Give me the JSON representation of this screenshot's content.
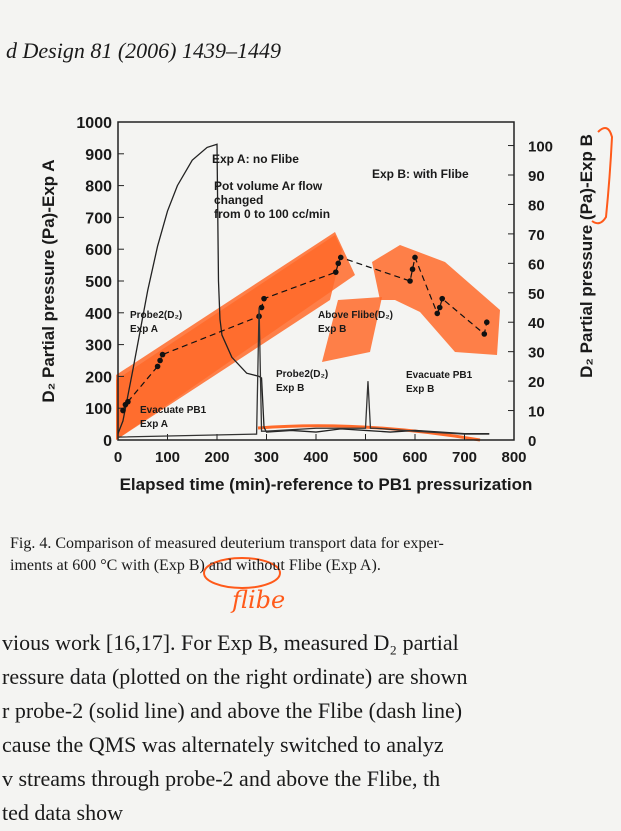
{
  "header": "d Design 81 (2006) 1439–1449",
  "chart_data": {
    "type": "line",
    "xlabel": "Elapsed time (min)-reference to PB1 pressurization",
    "ylabel": "D₂ Partial pressure (Pa)-Exp A",
    "y2label": "D₂ Partial pressure (Pa)-Exp B",
    "xlim": [
      0,
      800
    ],
    "xticks": [
      0,
      100,
      200,
      300,
      400,
      500,
      600,
      700,
      800
    ],
    "ylim": [
      0,
      1000
    ],
    "yticks": [
      0,
      100,
      200,
      300,
      400,
      500,
      600,
      700,
      800,
      900,
      1000
    ],
    "y2lim": [
      0,
      108
    ],
    "y2ticks": [
      0,
      10,
      20,
      30,
      40,
      50,
      60,
      70,
      80,
      90,
      100
    ],
    "annotations": [
      [
        "Exp A: no Flibe"
      ],
      [
        "Pot volume Ar flow",
        "changed",
        "from 0 to 100 cc/min"
      ],
      [
        "Exp B: with Flibe"
      ],
      [
        "Probe2(D₂)",
        "Exp A"
      ],
      [
        "Above Flibe(D₂)",
        "Exp B"
      ],
      [
        "Probe2(D₂)",
        "Exp B"
      ],
      [
        "Evacuate PB1",
        "Exp B"
      ],
      [
        "Evacuate PB1",
        "Exp A"
      ]
    ],
    "series": [
      {
        "color": "#222222",
        "x": [
          0,
          10,
          30,
          60,
          80,
          100,
          120,
          150,
          180,
          200,
          203,
          206,
          210,
          230,
          260,
          285,
          290,
          295,
          300,
          350,
          400,
          450,
          500,
          550,
          600,
          650,
          700,
          750
        ],
        "values": [
          20,
          60,
          220,
          470,
          610,
          720,
          800,
          880,
          920,
          930,
          500,
          380,
          330,
          260,
          210,
          200,
          195,
          40,
          25,
          30,
          25,
          35,
          30,
          25,
          30,
          25,
          20,
          20
        ]
      },
      {
        "color": "#111111",
        "axis": "y2",
        "x": [
          10,
          15,
          20,
          80,
          85,
          90,
          285,
          290,
          295,
          440,
          445,
          450,
          590,
          595,
          600,
          645,
          650,
          655,
          740,
          745
        ],
        "values": [
          10,
          12,
          13,
          25,
          27,
          29,
          42,
          45,
          48,
          57,
          60,
          62,
          54,
          58,
          62,
          43,
          45,
          48,
          36,
          40
        ]
      },
      {
        "color": "#333333",
        "axis": "y2",
        "x": [
          0,
          280,
          285,
          290,
          300,
          400,
          500,
          505,
          510,
          520,
          600,
          700,
          750
        ],
        "values": [
          1,
          2,
          45,
          3,
          3,
          4,
          4,
          20,
          4,
          4,
          3,
          2,
          2
        ]
      }
    ]
  },
  "caption": [
    "Fig. 4. Comparison of measured deuterium transport data for exper-",
    "iments at 600 °C with (Exp B) and without Flibe (Exp A)."
  ],
  "handwriting": "flibe",
  "body": [
    "vious work [16,17]. For Exp B, measured D₂ partial",
    "ressure data (plotted on the right ordinate) are shown",
    "r probe-2 (solid line) and above the Flibe (dash line)",
    "cause the QMS was alternately switched to analyz",
    "v streams through probe-2 and above the Flibe, th",
    "ted data show"
  ]
}
